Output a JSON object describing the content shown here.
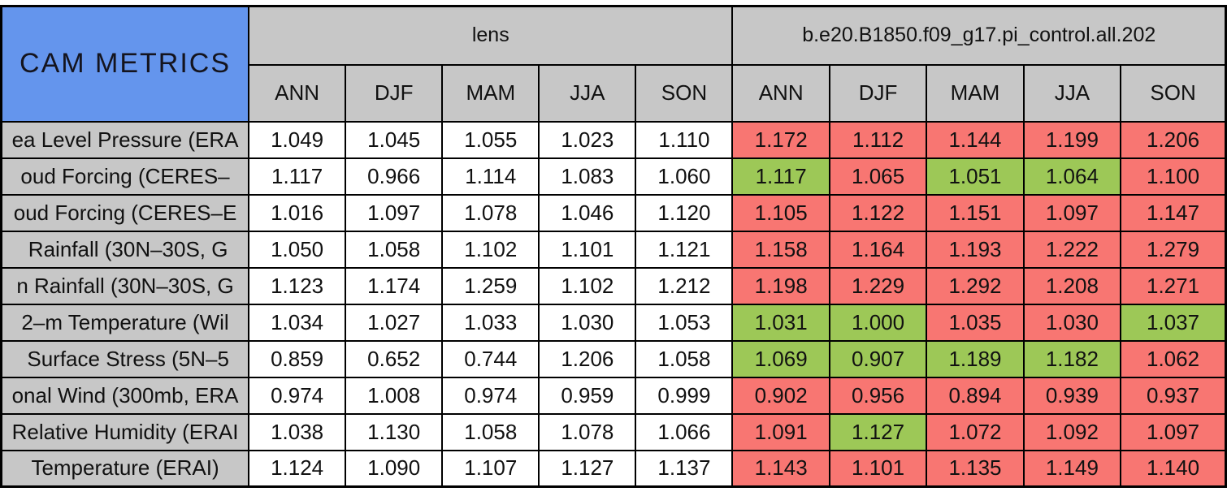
{
  "chart_data": {
    "type": "table",
    "title": "CAM METRICS",
    "groups": [
      {
        "label": "lens",
        "seasons": [
          "ANN",
          "DJF",
          "MAM",
          "JJA",
          "SON"
        ]
      },
      {
        "label": "b.e20.B1850.f09_g17.pi_control.all.202",
        "seasons": [
          "ANN",
          "DJF",
          "MAM",
          "JJA",
          "SON"
        ]
      }
    ],
    "rows": [
      {
        "label": "ea Level Pressure (ERA",
        "lens": [
          "1.049",
          "1.045",
          "1.055",
          "1.023",
          "1.110"
        ],
        "control": [
          "1.172",
          "1.112",
          "1.144",
          "1.199",
          "1.206"
        ],
        "control_colors": [
          "red",
          "red",
          "red",
          "red",
          "red"
        ]
      },
      {
        "label": "oud Forcing (CERES–",
        "lens": [
          "1.117",
          "0.966",
          "1.114",
          "1.083",
          "1.060"
        ],
        "control": [
          "1.117",
          "1.065",
          "1.051",
          "1.064",
          "1.100"
        ],
        "control_colors": [
          "green",
          "red",
          "green",
          "green",
          "red"
        ]
      },
      {
        "label": "oud Forcing (CERES–E",
        "lens": [
          "1.016",
          "1.097",
          "1.078",
          "1.046",
          "1.120"
        ],
        "control": [
          "1.105",
          "1.122",
          "1.151",
          "1.097",
          "1.147"
        ],
        "control_colors": [
          "red",
          "red",
          "red",
          "red",
          "red"
        ]
      },
      {
        "label": " Rainfall (30N–30S, G",
        "lens": [
          "1.050",
          "1.058",
          "1.102",
          "1.101",
          "1.121"
        ],
        "control": [
          "1.158",
          "1.164",
          "1.193",
          "1.222",
          "1.279"
        ],
        "control_colors": [
          "red",
          "red",
          "red",
          "red",
          "red"
        ]
      },
      {
        "label": "n Rainfall (30N–30S, G",
        "lens": [
          "1.123",
          "1.174",
          "1.259",
          "1.102",
          "1.212"
        ],
        "control": [
          "1.198",
          "1.229",
          "1.292",
          "1.208",
          "1.271"
        ],
        "control_colors": [
          "red",
          "red",
          "red",
          "red",
          "red"
        ]
      },
      {
        "label": "2–m Temperature (Wil",
        "lens": [
          "1.034",
          "1.027",
          "1.033",
          "1.030",
          "1.053"
        ],
        "control": [
          "1.031",
          "1.000",
          "1.035",
          "1.030",
          "1.037"
        ],
        "control_colors": [
          "green",
          "green",
          "red",
          "red",
          "green"
        ]
      },
      {
        "label": " Surface Stress (5N–5",
        "lens": [
          "0.859",
          "0.652",
          "0.744",
          "1.206",
          "1.058"
        ],
        "control": [
          "1.069",
          "0.907",
          "1.189",
          "1.182",
          "1.062"
        ],
        "control_colors": [
          "green",
          "green",
          "green",
          "green",
          "red"
        ]
      },
      {
        "label": "onal Wind (300mb, ERA",
        "lens": [
          "0.974",
          "1.008",
          "0.974",
          "0.959",
          "0.999"
        ],
        "control": [
          "0.902",
          "0.956",
          "0.894",
          "0.939",
          "0.937"
        ],
        "control_colors": [
          "red",
          "red",
          "red",
          "red",
          "red"
        ]
      },
      {
        "label": "Relative Humidity (ERAI",
        "lens": [
          "1.038",
          "1.130",
          "1.058",
          "1.078",
          "1.066"
        ],
        "control": [
          "1.091",
          "1.127",
          "1.072",
          "1.092",
          "1.097"
        ],
        "control_colors": [
          "red",
          "green",
          "red",
          "red",
          "red"
        ]
      },
      {
        "label": "Temperature (ERAI)",
        "lens": [
          "1.124",
          "1.090",
          "1.107",
          "1.127",
          "1.137"
        ],
        "control": [
          "1.143",
          "1.101",
          "1.135",
          "1.149",
          "1.140"
        ],
        "control_colors": [
          "red",
          "red",
          "red",
          "red",
          "red"
        ]
      }
    ],
    "colors": {
      "cell_red": "#F87672",
      "cell_green": "#9DC857",
      "cell_white": "#FFFFFF",
      "header_gray": "#C7C7C7",
      "title_blue": "#6495ED"
    }
  }
}
